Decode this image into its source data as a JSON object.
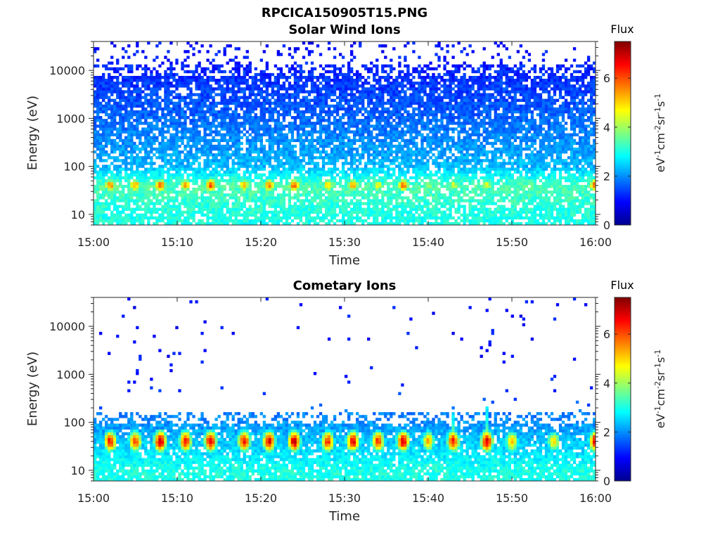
{
  "figure_title": "RPCICA150905T15.PNG",
  "chart_data": [
    {
      "type": "heatmap",
      "title": "Solar Wind Ions",
      "xlabel": "Time",
      "ylabel": "Energy (eV)",
      "x_tick_labels": [
        "15:00",
        "15:10",
        "15:20",
        "15:30",
        "15:40",
        "15:50",
        "16:00"
      ],
      "xlim": [
        "15:00",
        "16:00"
      ],
      "y_scale": "log",
      "y_tick_values": [
        10,
        100,
        1000,
        10000
      ],
      "y_tick_labels": [
        "10",
        "100",
        "1000",
        "10000"
      ],
      "ylim": [
        6,
        40000
      ],
      "colorbar": {
        "title": "Flux",
        "label": "eV-1cm-2sr-1s-1",
        "colormap": "jet",
        "range": [
          0,
          7.5
        ],
        "tick_labels": [
          "0",
          "2",
          "4",
          "6"
        ]
      },
      "peak_band_eV": [
        30,
        55
      ],
      "peak_times": [
        "15:02",
        "15:05",
        "15:08",
        "15:11",
        "15:14",
        "15:18",
        "15:21",
        "15:24",
        "15:28",
        "15:31",
        "15:34",
        "15:37",
        "15:40",
        "15:43",
        "15:47",
        "16:00"
      ],
      "peak_flux": [
        5.5,
        5.5,
        5.8,
        5.3,
        6.2,
        5.2,
        5.8,
        6.0,
        5.2,
        5.5,
        4.8,
        5.8,
        4.2,
        4.5,
        4.5,
        6.0
      ],
      "background_flux_by_energy": [
        {
          "energy_eV": 10,
          "flux": 3.0
        },
        {
          "energy_eV": 40,
          "flux": 3.4
        },
        {
          "energy_eV": 100,
          "flux": 2.3
        },
        {
          "energy_eV": 1000,
          "flux": 1.7
        },
        {
          "energy_eV": 10000,
          "flux": 1.2
        },
        {
          "energy_eV": 30000,
          "flux": 1.0
        }
      ]
    },
    {
      "type": "heatmap",
      "title": "Cometary Ions",
      "xlabel": "Time",
      "ylabel": "Energy (eV)",
      "x_tick_labels": [
        "15:00",
        "15:10",
        "15:20",
        "15:30",
        "15:40",
        "15:50",
        "16:00"
      ],
      "xlim": [
        "15:00",
        "16:00"
      ],
      "y_scale": "log",
      "y_tick_values": [
        10,
        100,
        1000,
        10000
      ],
      "y_tick_labels": [
        "10",
        "100",
        "1000",
        "10000"
      ],
      "ylim": [
        6,
        40000
      ],
      "colorbar": {
        "title": "Flux",
        "label": "eV-1cm-2sr-1s-1",
        "colormap": "jet",
        "range": [
          0,
          7.5
        ],
        "tick_labels": [
          "0",
          "2",
          "4",
          "6"
        ]
      },
      "peak_band_eV": [
        25,
        65
      ],
      "peak_times": [
        "15:02",
        "15:05",
        "15:08",
        "15:11",
        "15:14",
        "15:18",
        "15:21",
        "15:24",
        "15:28",
        "15:31",
        "15:34",
        "15:37",
        "15:40",
        "15:43",
        "15:47",
        "15:50",
        "15:55",
        "16:00"
      ],
      "peak_flux": [
        6.5,
        6.2,
        7.0,
        6.5,
        6.8,
        6.5,
        6.8,
        7.0,
        6.3,
        6.8,
        6.3,
        6.8,
        5.3,
        6.5,
        6.8,
        5.3,
        5.0,
        6.8
      ],
      "tall_features": [
        {
          "time": "15:43",
          "max_energy_eV": 300
        },
        {
          "time": "15:47",
          "max_energy_eV": 600
        }
      ],
      "background_flux_by_energy": [
        {
          "energy_eV": 10,
          "flux": 3.0
        },
        {
          "energy_eV": 100,
          "flux": 2.0
        },
        {
          "energy_eV": 1000,
          "flux": 1.0
        },
        {
          "energy_eV": 30000,
          "flux": 1.0
        }
      ]
    }
  ]
}
